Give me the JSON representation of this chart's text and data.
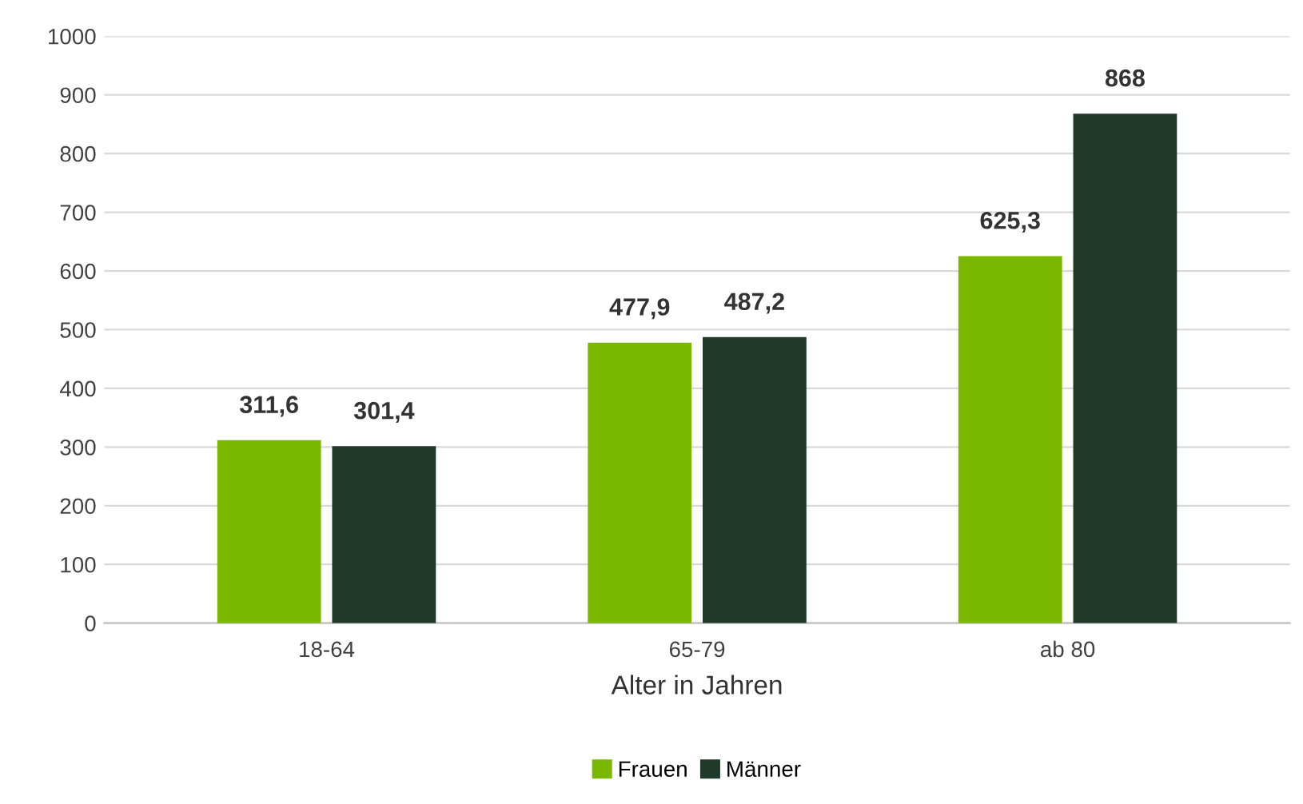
{
  "chart_data": {
    "type": "bar",
    "xlabel": "Alter in Jahren",
    "categories": [
      "18-64",
      "65-79",
      "ab 80"
    ],
    "series": [
      {
        "name": "Frauen",
        "color": "#7ab800",
        "values": [
          311.6,
          477.9,
          625.3
        ],
        "value_labels": [
          "311,6",
          "477,9",
          "625,3"
        ]
      },
      {
        "name": "Männer",
        "color": "#1f3a2b",
        "values": [
          301.4,
          487.2,
          868
        ],
        "value_labels": [
          "301,4",
          "487,2",
          "868"
        ]
      }
    ],
    "ylim": [
      0,
      1000
    ],
    "yticks": [
      0,
      100,
      200,
      300,
      400,
      500,
      600,
      700,
      800,
      900,
      1000
    ],
    "grid": "y",
    "legend": "bottom"
  }
}
